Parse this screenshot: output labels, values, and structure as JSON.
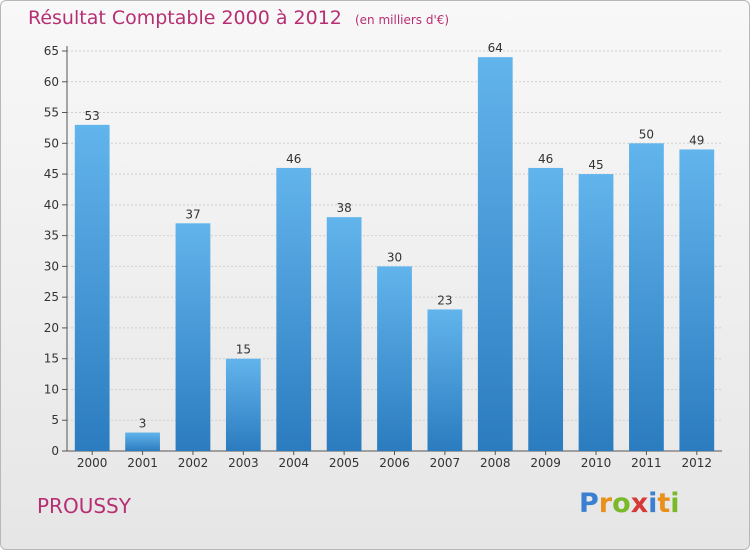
{
  "header": {
    "title": "Résultat Comptable 2000 à 2012",
    "subtitle": "(en milliers d'€)"
  },
  "commune": "PROUSSY",
  "logo": {
    "text": "Proxiti",
    "letters": [
      "P",
      "r",
      "o",
      "x",
      "i",
      "t",
      "i"
    ],
    "colors": [
      "#3a7fd1",
      "#e8901a",
      "#7ab929",
      "#d63a38",
      "#3a7fd1",
      "#e8901a",
      "#7ab929"
    ]
  },
  "colors": {
    "bar_light": "#62b4ec",
    "bar_dark": "#2b7cbf",
    "text": "#b72f73"
  },
  "chart_data": {
    "type": "bar",
    "title": "Résultat Comptable 2000 à 2012",
    "subtitle": "(en milliers d'€)",
    "xlabel": "",
    "ylabel": "",
    "categories": [
      "2000",
      "2001",
      "2002",
      "2003",
      "2004",
      "2005",
      "2006",
      "2007",
      "2008",
      "2009",
      "2010",
      "2011",
      "2012"
    ],
    "values": [
      53,
      3,
      37,
      15,
      46,
      38,
      30,
      23,
      64,
      46,
      45,
      50,
      49
    ],
    "ylim": [
      0,
      65
    ],
    "yticks": [
      0,
      5,
      10,
      15,
      20,
      25,
      30,
      35,
      40,
      45,
      50,
      55,
      60,
      65
    ],
    "grid": true
  }
}
